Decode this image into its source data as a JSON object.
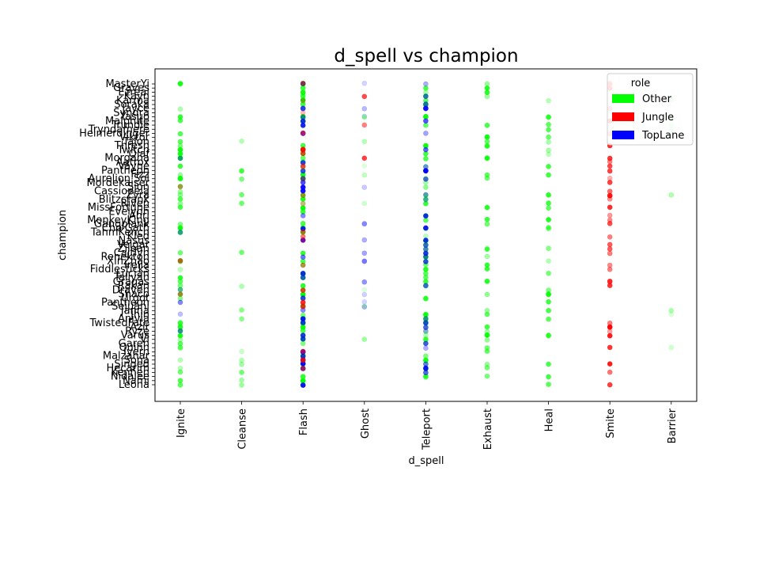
{
  "chart_data": {
    "type": "scatter",
    "title": "d_spell vs champion",
    "xlabel": "d_spell",
    "ylabel": "champion",
    "x_categories": [
      "Ignite",
      "Cleanse",
      "Flash",
      "Ghost",
      "Teleport",
      "Exhaust",
      "Heal",
      "Smite",
      "Barrier"
    ],
    "y_labels_visible": [
      "MasterYi",
      "Graves",
      "Ezreal",
      "Kayn",
      "Karma",
      "Soraka",
      "Jayce",
      "Syndra",
      "Yasuo",
      "Malphite",
      "Trundle",
      "Tryndamere",
      "Heimerdinger",
      "Viktor",
      "Talon",
      "Thresh",
      "Twitch",
      "Olaf",
      "Morgana",
      "Aatrox",
      "Vayne",
      "Pantheon",
      "Fizz",
      "Aurelion Sol",
      "Mordekaiser",
      "Sion",
      "Cassiopeia",
      "Zyra",
      "Blitzcrank",
      "Riven",
      "MissFortune",
      "Evelynn",
      "Ahri",
      "MonkeyKing",
      "Gangplank",
      "Cho'Gath",
      "TahmKench",
      "Kled",
      "Nasus",
      "Veigar",
      "Zilean",
      "Caitlyn",
      "Renekton",
      "XinZhao",
      "Irelia",
      "Fiddlesticks",
      "Lucian",
      "Taliyah",
      "Gragas",
      "Rakan",
      "Draven",
      "Shaco",
      "Urgot",
      "Pantheon",
      "Sejuani",
      "Janna",
      "Jhin",
      "Anivia",
      "TwistedFate",
      "Azir",
      "Ryze",
      "Varus",
      "Vi",
      "Garen",
      "Quinn",
      "Ivern",
      "Malzahar",
      "Sona",
      "Singed",
      "Hecarim",
      "Kennen",
      "Nidalee",
      "Nami",
      "Leona"
    ],
    "legend": {
      "title": "role",
      "placement": "top-right",
      "entries": [
        {
          "name": "Other",
          "color": "#00ff00"
        },
        {
          "name": "Jungle",
          "color": "#ff0000"
        },
        {
          "name": "TopLane",
          "color": "#0000ff"
        }
      ]
    },
    "series": [
      {
        "name": "Other",
        "color": "#00ff00",
        "spell_index": 0,
        "count": 60,
        "opacity": 0.55
      },
      {
        "name": "TopLane",
        "color": "#0000ff",
        "spell_index": 0,
        "count": 6,
        "opacity": 0.4
      },
      {
        "name": "Jungle",
        "color": "#ff0000",
        "spell_index": 0,
        "count": 3,
        "opacity": 0.4
      },
      {
        "name": "Other",
        "color": "#00ff00",
        "spell_index": 1,
        "count": 16,
        "opacity": 0.4
      },
      {
        "name": "Other",
        "color": "#00ff00",
        "spell_index": 2,
        "count": 100,
        "opacity": 0.6
      },
      {
        "name": "TopLane",
        "color": "#0000ff",
        "spell_index": 2,
        "count": 40,
        "opacity": 0.6
      },
      {
        "name": "Jungle",
        "color": "#ff0000",
        "spell_index": 2,
        "count": 25,
        "opacity": 0.5
      },
      {
        "name": "TopLane",
        "color": "#0000ff",
        "spell_index": 3,
        "count": 14,
        "opacity": 0.3
      },
      {
        "name": "Other",
        "color": "#00ff00",
        "spell_index": 3,
        "count": 8,
        "opacity": 0.25
      },
      {
        "name": "Jungle",
        "color": "#ff0000",
        "spell_index": 3,
        "count": 3,
        "opacity": 0.5
      },
      {
        "name": "Other",
        "color": "#00ff00",
        "spell_index": 4,
        "count": 70,
        "opacity": 0.55
      },
      {
        "name": "TopLane",
        "color": "#0000ff",
        "spell_index": 4,
        "count": 40,
        "opacity": 0.55
      },
      {
        "name": "Other",
        "color": "#00ff00",
        "spell_index": 5,
        "count": 45,
        "opacity": 0.55
      },
      {
        "name": "Other",
        "color": "#00ff00",
        "spell_index": 6,
        "count": 40,
        "opacity": 0.5
      },
      {
        "name": "Jungle",
        "color": "#ff0000",
        "spell_index": 7,
        "count": 40,
        "opacity": 0.6
      },
      {
        "name": "Other",
        "color": "#00ff00",
        "spell_index": 8,
        "count": 10,
        "opacity": 0.25
      }
    ]
  }
}
